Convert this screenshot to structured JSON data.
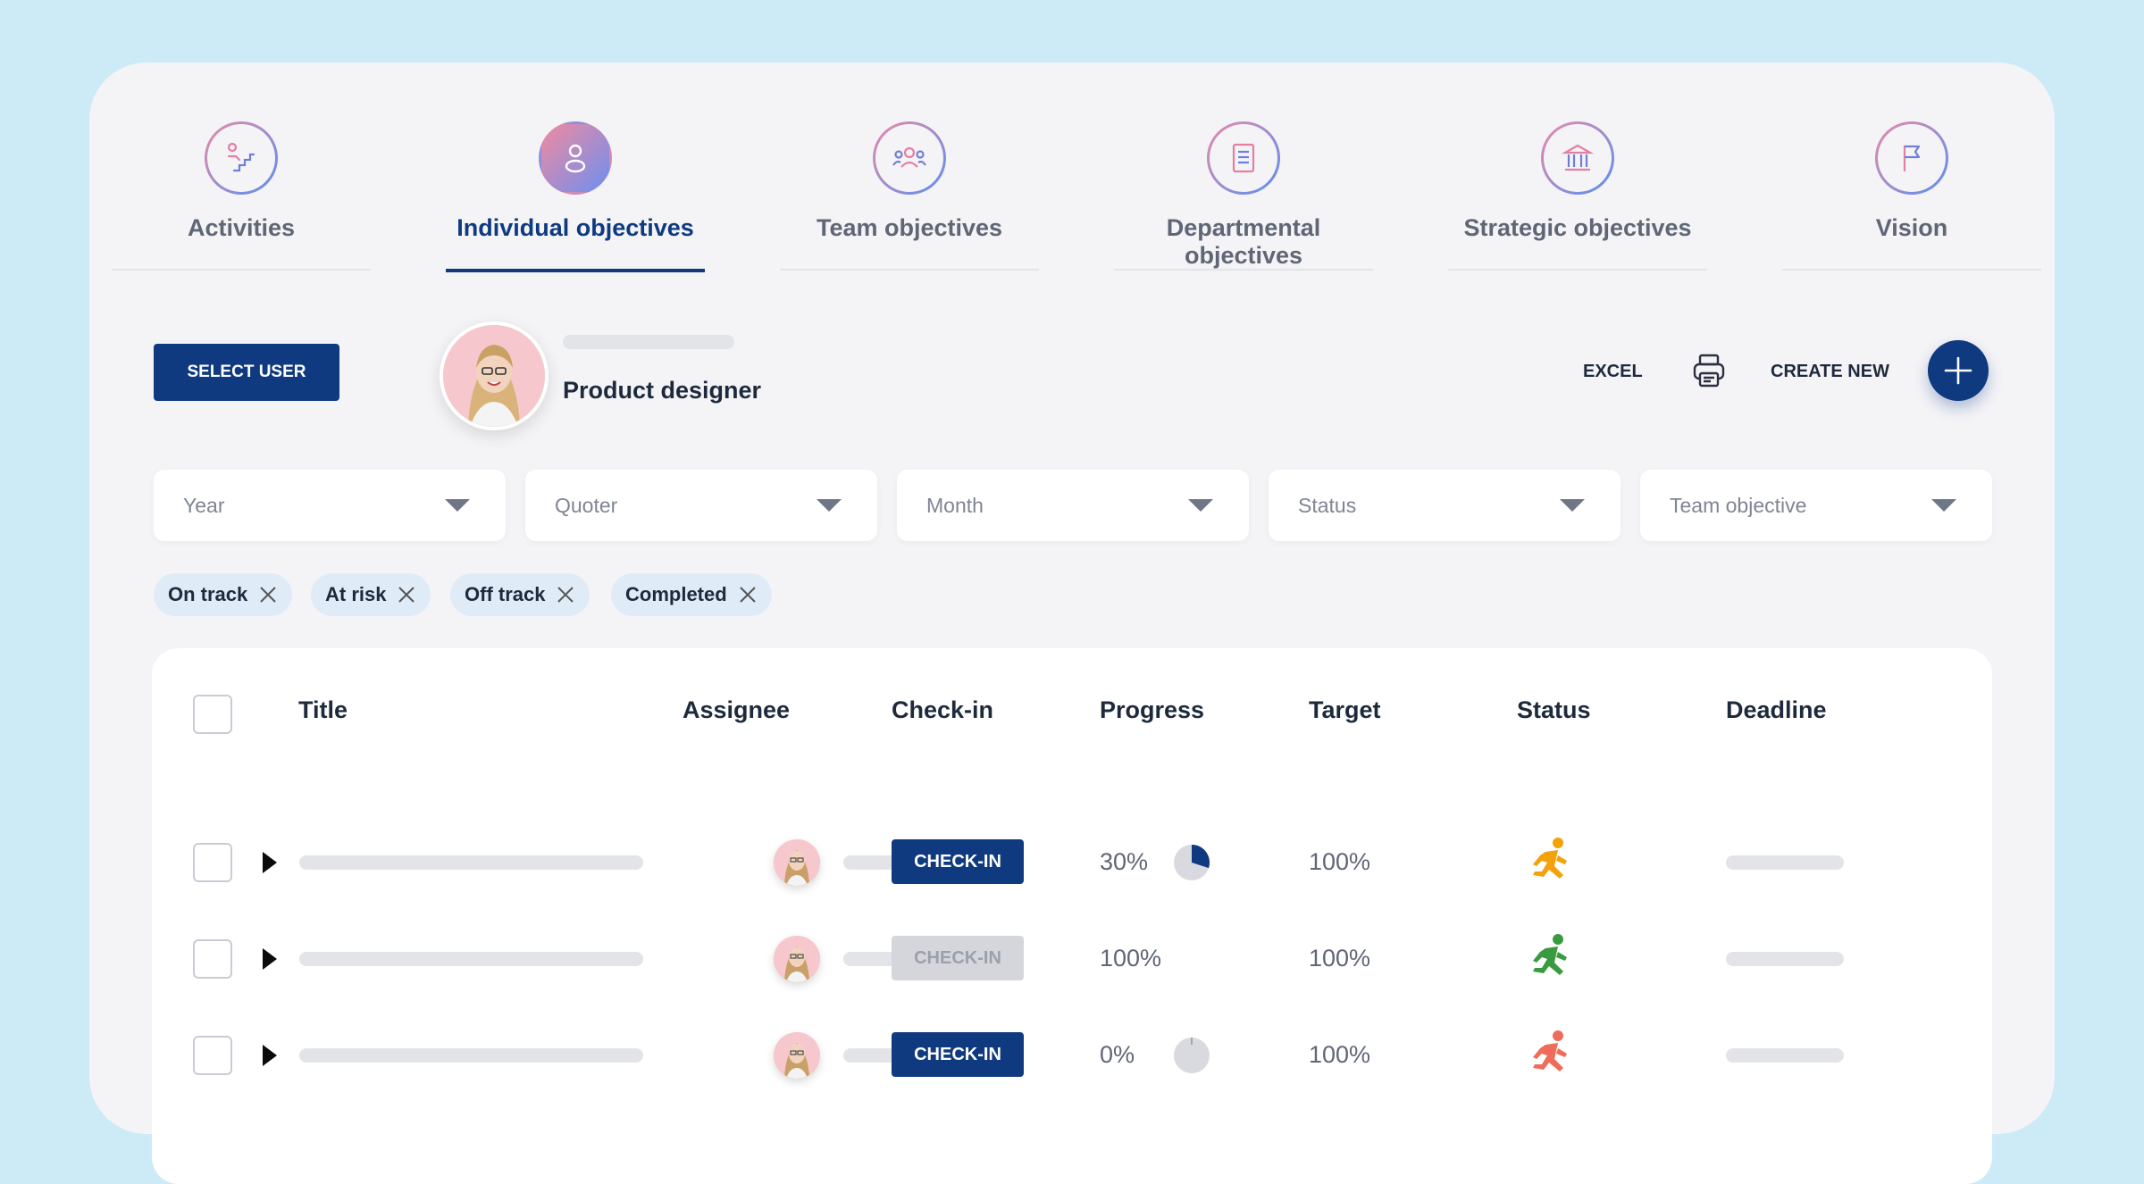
{
  "tabs": [
    {
      "label": "Activities",
      "icon": "activities-stairs-icon",
      "active": false
    },
    {
      "label": "Individual objectives",
      "icon": "person-icon",
      "active": true
    },
    {
      "label": "Team objectives",
      "icon": "team-icon",
      "active": false
    },
    {
      "label": "Departmental objectives",
      "icon": "document-icon",
      "active": false
    },
    {
      "label": "Strategic objectives",
      "icon": "bank-building-icon",
      "active": false
    },
    {
      "label": "Vision",
      "icon": "flag-icon",
      "active": false
    }
  ],
  "toolbar": {
    "select_user_label": "SELECT USER",
    "user_role": "Product designer",
    "excel_label": "EXCEL",
    "print_icon": "printer-icon",
    "create_new_label": "CREATE NEW",
    "add_icon": "plus-icon"
  },
  "filters": [
    {
      "placeholder": "Year"
    },
    {
      "placeholder": "Quoter"
    },
    {
      "placeholder": "Month"
    },
    {
      "placeholder": "Status"
    },
    {
      "placeholder": "Team objective"
    }
  ],
  "chips": [
    {
      "label": "On track"
    },
    {
      "label": "At risk"
    },
    {
      "label": "Off track"
    },
    {
      "label": "Completed"
    }
  ],
  "table": {
    "headers": [
      "Title",
      "Assignee",
      "Check-in",
      "Progress",
      "Target",
      "Status",
      "Deadline"
    ],
    "rows": [
      {
        "checkin_label": "CHECK-IN",
        "checkin_enabled": true,
        "progress": "30%",
        "progress_fraction": 0.3,
        "show_pie": true,
        "target": "100%",
        "status": "at-risk",
        "status_color": "#f4a20c",
        "status_icon": "running-person-icon"
      },
      {
        "checkin_label": "CHECK-IN",
        "checkin_enabled": false,
        "progress": "100%",
        "progress_fraction": 1.0,
        "show_pie": false,
        "target": "100%",
        "status": "on-track",
        "status_color": "#3a9a3f",
        "status_icon": "running-person-icon"
      },
      {
        "checkin_label": "CHECK-IN",
        "checkin_enabled": true,
        "progress": "0%",
        "progress_fraction": 0.0,
        "show_pie": true,
        "target": "100%",
        "status": "off-track",
        "status_color": "#ef6b5a",
        "status_icon": "running-person-icon"
      }
    ]
  },
  "colors": {
    "primary": "#0f3a80",
    "background": "#cdeaf7",
    "card": "#f4f4f7"
  }
}
